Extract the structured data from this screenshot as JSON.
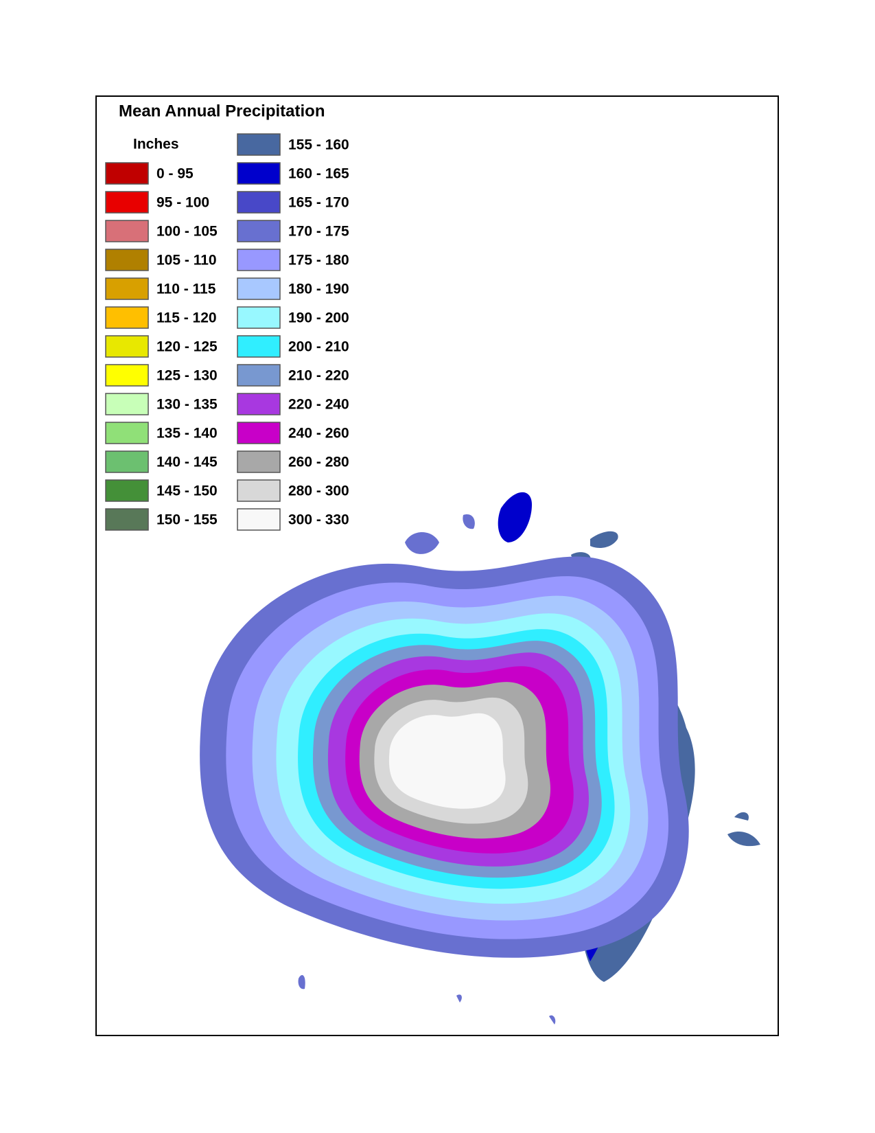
{
  "title": "Mean Annual Precipitation",
  "legend": {
    "unit": "Inches",
    "items": [
      {
        "label": "0 - 95",
        "color": "#c00000"
      },
      {
        "label": "95 - 100",
        "color": "#e80000"
      },
      {
        "label": "100 - 105",
        "color": "#d87078"
      },
      {
        "label": "105 - 110",
        "color": "#b08000"
      },
      {
        "label": "110 - 115",
        "color": "#d8a000"
      },
      {
        "label": "115 - 120",
        "color": "#ffbf00"
      },
      {
        "label": "120 - 125",
        "color": "#e8e800"
      },
      {
        "label": "125 - 130",
        "color": "#ffff00"
      },
      {
        "label": "130 - 135",
        "color": "#c8ffb8"
      },
      {
        "label": "135 - 140",
        "color": "#90e078"
      },
      {
        "label": "140 - 145",
        "color": "#6cc070"
      },
      {
        "label": "145 - 150",
        "color": "#449038"
      },
      {
        "label": "150 - 155",
        "color": "#587858"
      },
      {
        "label": "155 - 160",
        "color": "#4868a0"
      },
      {
        "label": "160 - 165",
        "color": "#0000cc"
      },
      {
        "label": "165 - 170",
        "color": "#4848c8"
      },
      {
        "label": "170 - 175",
        "color": "#6870d0"
      },
      {
        "label": "175 - 180",
        "color": "#9898ff"
      },
      {
        "label": "180 - 190",
        "color": "#a8c8ff"
      },
      {
        "label": "190 - 200",
        "color": "#98f8ff"
      },
      {
        "label": "200 - 210",
        "color": "#30eeff"
      },
      {
        "label": "210 - 220",
        "color": "#7898d0"
      },
      {
        "label": "220 - 240",
        "color": "#a838e0"
      },
      {
        "label": "240 - 260",
        "color": "#c800c8"
      },
      {
        "label": "260 - 280",
        "color": "#a8a8a8"
      },
      {
        "label": "280 - 300",
        "color": "#d8d8d8"
      },
      {
        "label": "300 - 330",
        "color": "#f8f8f8"
      }
    ]
  }
}
